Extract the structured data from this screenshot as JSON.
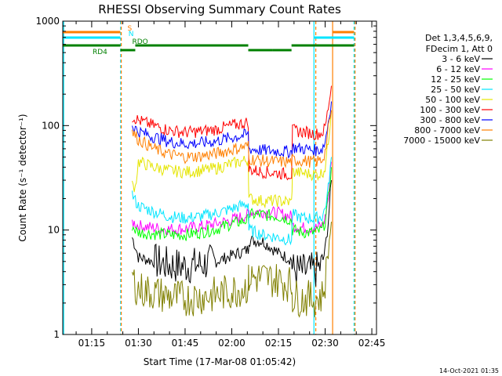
{
  "chart_data": {
    "type": "line",
    "title": "RHESSI Observing Summary Count Rates",
    "xlabel": "Start Time (17-Mar-08 01:05:42)",
    "ylabel": "Count Rate (s⁻¹ detector⁻¹)",
    "yscale": "log",
    "ylim": [
      1,
      1000
    ],
    "xlim_minutes": [
      65.7,
      166.5
    ],
    "x_ticks": [
      {
        "label": "01:15",
        "min": 75
      },
      {
        "label": "01:30",
        "min": 90
      },
      {
        "label": "01:45",
        "min": 105
      },
      {
        "label": "02:00",
        "min": 120
      },
      {
        "label": "02:15",
        "min": 135
      },
      {
        "label": "02:30",
        "min": 150
      },
      {
        "label": "02:45",
        "min": 165
      }
    ],
    "y_ticks": [
      {
        "label": "1",
        "v": 1
      },
      {
        "label": "10",
        "v": 10
      },
      {
        "label": "100",
        "v": 100
      },
      {
        "label": "1000",
        "v": 1000
      }
    ],
    "legend_header": [
      "Det 1,3,4,5,6,9,",
      "FDecim 1, Att 0"
    ],
    "legend_position": "right",
    "timestamp": "14-Oct-2021 01:35",
    "state_bars": [
      {
        "label": "S",
        "color": "#ff7f00",
        "label_min": 86.5,
        "segments": [
          [
            65.7,
            84.2
          ],
          [
            152.5,
            159.3
          ]
        ]
      },
      {
        "label": "N",
        "color": "#00e5ff",
        "label_min": 86.8,
        "segments": [
          [
            65.7,
            84.2
          ],
          [
            146.5,
            159.3
          ]
        ]
      },
      {
        "label": "RDO",
        "color": "#008000",
        "label_min": 88.0,
        "segments": [
          [
            65.7,
            84.2
          ],
          [
            89,
            125.3
          ],
          [
            139.2,
            159.3
          ]
        ]
      },
      {
        "label": "RD4",
        "color": "#008000",
        "label_min": 78.0,
        "segments": [
          [
            65.7,
            84.2
          ],
          [
            84.2,
            89
          ],
          [
            125.3,
            133
          ],
          [
            133,
            139.2
          ]
        ]
      }
    ],
    "vertical_markers": [
      {
        "min": 66.0,
        "color": "#00e5ff",
        "style": "solid"
      },
      {
        "min": 84.3,
        "color": "#00e5ff",
        "style": "dashed"
      },
      {
        "min": 84.5,
        "color": "#ff7f00",
        "style": "dashed"
      },
      {
        "min": 146.4,
        "color": "#00e5ff",
        "style": "solid"
      },
      {
        "min": 147.0,
        "color": "#ff7f00",
        "style": "dashed"
      },
      {
        "min": 152.4,
        "color": "#ff7f00",
        "style": "solid"
      },
      {
        "min": 159.3,
        "color": "#00e5ff",
        "style": "dashed"
      },
      {
        "min": 159.6,
        "color": "#ff7f00",
        "style": "dashed"
      }
    ],
    "series": [
      {
        "name": "3 - 6 keV",
        "color": "#000000",
        "x": [
          88,
          89,
          90,
          95,
          100,
          105,
          110,
          115,
          120,
          125.3,
          125.5,
          130,
          135,
          139.2,
          139.5,
          143,
          147,
          149,
          150,
          151,
          152
        ],
        "y": [
          8.5,
          7.0,
          5.5,
          5.0,
          4.6,
          4.5,
          4.7,
          5.0,
          5.7,
          6.5,
          8.0,
          7.8,
          6.0,
          5.2,
          4.2,
          4.0,
          4.1,
          4.6,
          6.5,
          12,
          30
        ]
      },
      {
        "name": "6 - 12 keV",
        "color": "#ff00ff",
        "x": [
          88,
          89,
          90,
          95,
          100,
          105,
          110,
          115,
          120,
          125.3,
          125.5,
          130,
          135,
          139.2,
          139.5,
          143,
          147,
          149,
          150,
          151,
          152
        ],
        "y": [
          12,
          11.5,
          11,
          10.5,
          10.2,
          10.3,
          10.8,
          11.5,
          12.5,
          14,
          15,
          15,
          14.5,
          13.5,
          11,
          10.5,
          10.5,
          11,
          13,
          20,
          45
        ]
      },
      {
        "name": "12 - 25 keV",
        "color": "#00ff00",
        "x": [
          88,
          89,
          90,
          95,
          100,
          105,
          110,
          115,
          120,
          125.3,
          125.5,
          130,
          135,
          139.2,
          139.5,
          143,
          147,
          149,
          150,
          151,
          152
        ],
        "y": [
          11,
          10,
          9.5,
          9.2,
          9.0,
          9.0,
          9.5,
          10.2,
          11.5,
          12.5,
          14,
          14,
          13.5,
          12.5,
          10,
          9.5,
          9.5,
          10,
          12,
          20,
          40
        ]
      },
      {
        "name": "25 - 50 keV",
        "color": "#00e5ff",
        "x": [
          88,
          89,
          90,
          95,
          100,
          105,
          110,
          115,
          120,
          125.3,
          125.5,
          130,
          135,
          139.2,
          139.5,
          143,
          147,
          149,
          150,
          151,
          152
        ],
        "y": [
          22,
          19,
          17,
          15,
          13.5,
          13,
          13.5,
          14.5,
          16,
          18,
          10,
          9,
          8.5,
          8,
          14,
          13,
          13,
          13.5,
          16,
          25,
          50
        ]
      },
      {
        "name": "50 - 100 keV",
        "color": "#e5e500",
        "x": [
          88,
          89,
          90,
          95,
          100,
          105,
          110,
          115,
          120,
          125.3,
          125.5,
          130,
          135,
          139.2,
          139.5,
          143,
          147,
          149,
          150,
          151,
          152
        ],
        "y": [
          27,
          26,
          45,
          40,
          37,
          36,
          37,
          39,
          43,
          47,
          20,
          19,
          19,
          18.5,
          36,
          35,
          34,
          35,
          40,
          70,
          140
        ]
      },
      {
        "name": "100 - 300 keV",
        "color": "#ff0000",
        "x": [
          88,
          89,
          90,
          95,
          100,
          105,
          110,
          115,
          120,
          125.3,
          125.5,
          130,
          135,
          139.2,
          139.5,
          143,
          147,
          149,
          150,
          151,
          152
        ],
        "y": [
          120,
          118,
          112,
          100,
          90,
          86,
          88,
          92,
          100,
          108,
          38,
          36,
          35,
          34,
          90,
          87,
          83,
          85,
          95,
          150,
          240
        ]
      },
      {
        "name": "300 - 800 keV",
        "color": "#0000ff",
        "x": [
          88,
          89,
          90,
          95,
          100,
          105,
          110,
          115,
          120,
          125.3,
          125.5,
          130,
          135,
          139.2,
          139.5,
          143,
          147,
          149,
          150,
          151,
          152
        ],
        "y": [
          100,
          94,
          88,
          78,
          70,
          67,
          68,
          71,
          77,
          82,
          60,
          58,
          57,
          56,
          62,
          60,
          58,
          60,
          70,
          110,
          170
        ]
      },
      {
        "name": "800 - 7000 keV",
        "color": "#ff7f00",
        "x": [
          88,
          89,
          90,
          95,
          100,
          105,
          110,
          115,
          120,
          125.3,
          125.5,
          130,
          135,
          139.2,
          139.5,
          143,
          147,
          149,
          150,
          151,
          152
        ],
        "y": [
          88,
          80,
          74,
          60,
          53,
          50,
          51,
          54,
          59,
          64,
          48,
          46,
          45,
          45,
          47,
          46,
          45,
          47,
          56,
          90,
          140
        ]
      },
      {
        "name": "7000 - 15000 keV",
        "color": "#808000",
        "x": [
          88,
          89,
          90,
          95,
          100,
          105,
          110,
          115,
          120,
          125.3,
          125.5,
          130,
          135,
          139.2,
          139.5,
          143,
          147,
          149,
          150,
          151,
          152
        ],
        "y": [
          3.5,
          3.0,
          2.7,
          2.5,
          2.3,
          2.2,
          2.3,
          2.4,
          2.6,
          2.9,
          3.5,
          3.5,
          3.3,
          3.0,
          2.3,
          2.2,
          2.2,
          2.3,
          3.2,
          6,
          12
        ]
      }
    ]
  }
}
